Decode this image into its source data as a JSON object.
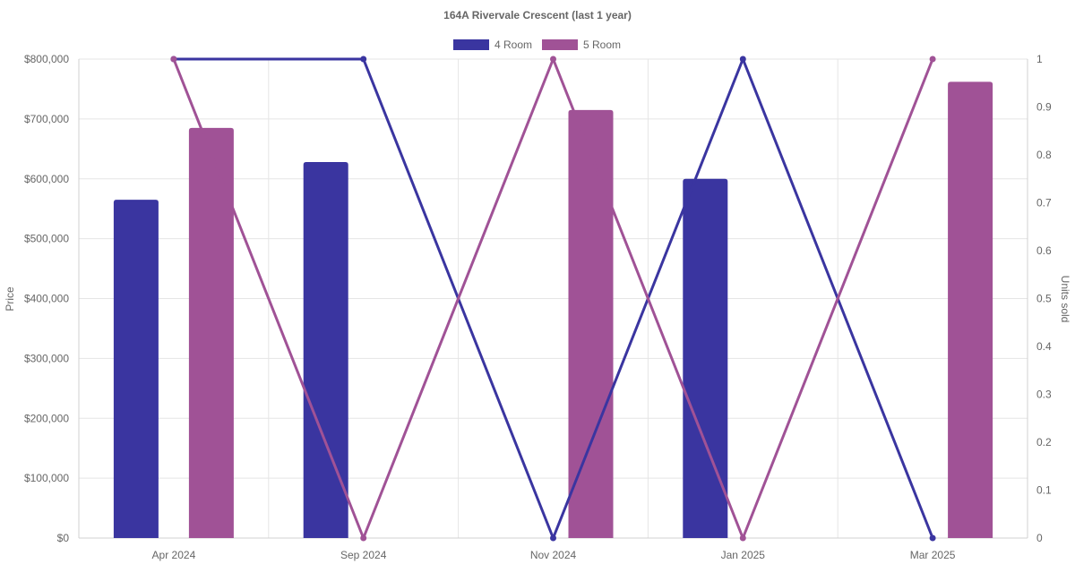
{
  "chart_data": {
    "type": "bar",
    "title": "164A Rivervale Crescent (last 1 year)",
    "categories": [
      "Apr 2024",
      "Sep 2024",
      "Nov 2024",
      "Jan 2025",
      "Mar 2025"
    ],
    "y_left": {
      "label": "Price",
      "range": [
        0,
        800000
      ],
      "ticks": [
        "$0",
        "$100,000",
        "$200,000",
        "$300,000",
        "$400,000",
        "$500,000",
        "$600,000",
        "$700,000",
        "$800,000"
      ],
      "tick_values": [
        0,
        100000,
        200000,
        300000,
        400000,
        500000,
        600000,
        700000,
        800000
      ]
    },
    "y_right": {
      "label": "Units sold",
      "range": [
        0,
        1
      ],
      "ticks": [
        "0",
        "0.1",
        "0.2",
        "0.3",
        "0.4",
        "0.5",
        "0.6",
        "0.7",
        "0.8",
        "0.9",
        "1"
      ],
      "tick_values": [
        0,
        0.1,
        0.2,
        0.3,
        0.4,
        0.5,
        0.6,
        0.7,
        0.8,
        0.9,
        1
      ]
    },
    "legend": {
      "placement": "top-center"
    },
    "grid": true,
    "series": [
      {
        "name": "4 Room",
        "color": "#3a35a0",
        "price": [
          565000,
          628000,
          null,
          600000,
          null
        ],
        "units": [
          1,
          1,
          0,
          1,
          0
        ]
      },
      {
        "name": "5 Room",
        "color": "#a05296",
        "price": [
          685000,
          null,
          715000,
          null,
          762000
        ],
        "units": [
          1,
          0,
          1,
          0,
          1
        ]
      }
    ]
  }
}
